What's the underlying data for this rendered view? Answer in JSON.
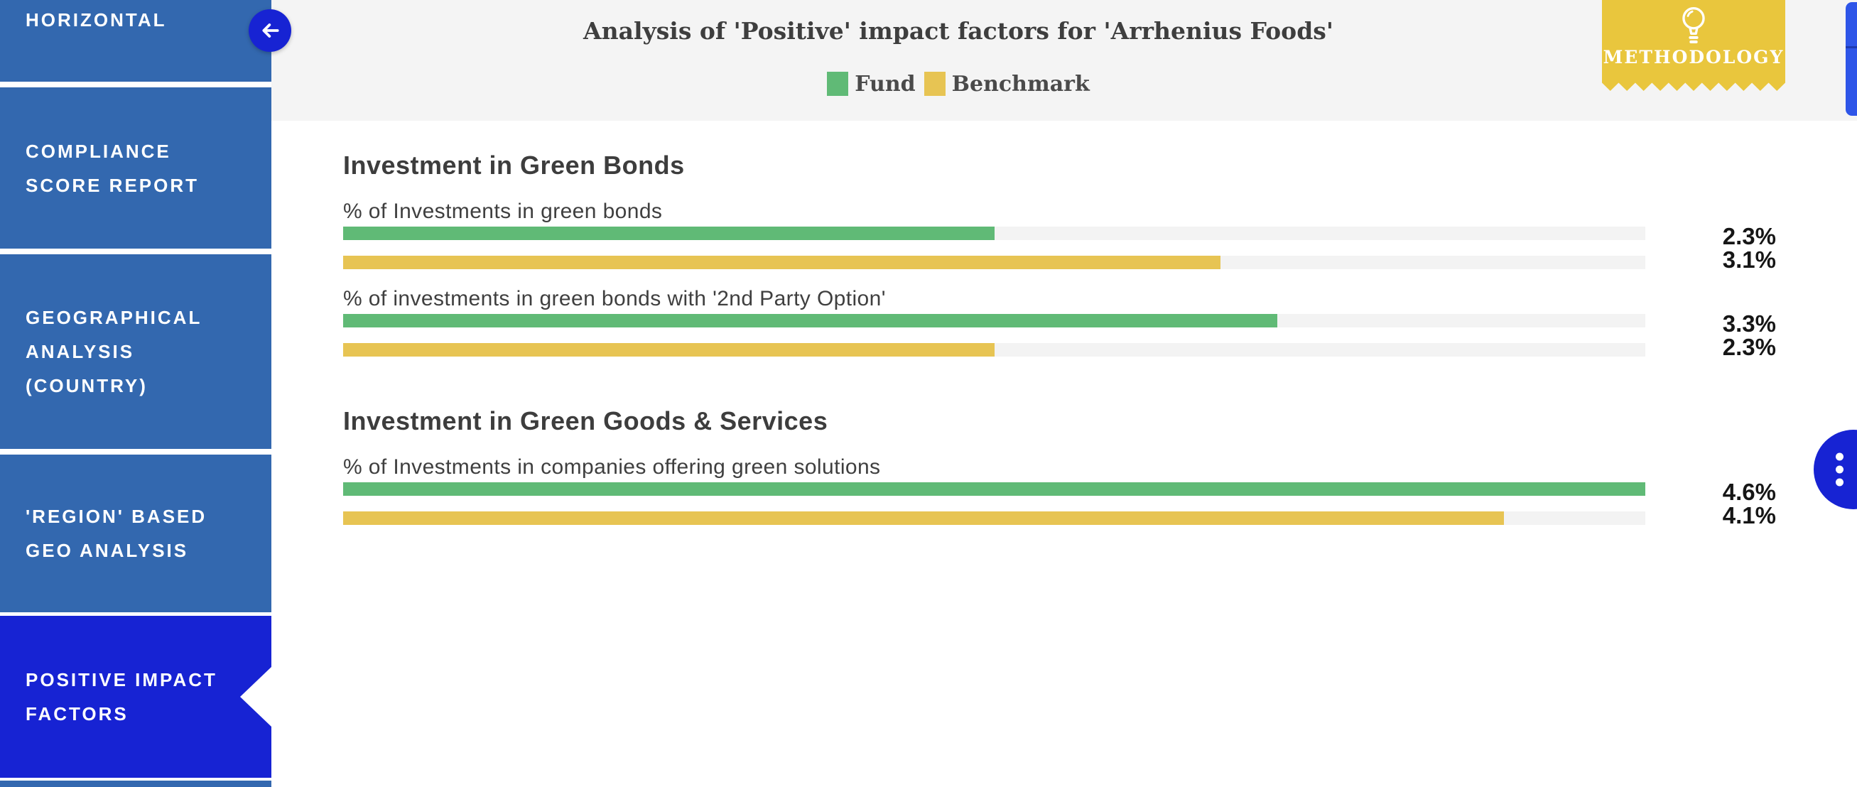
{
  "sidebar": {
    "items": [
      {
        "label": "HORIZONTAL",
        "active": false
      },
      {
        "label": "COMPLIANCE SCORE REPORT",
        "active": false
      },
      {
        "label": "GEOGRAPHICAL ANALYSIS (COUNTRY)",
        "active": false
      },
      {
        "label": "'REGION' BASED GEO ANALYSIS",
        "active": false
      },
      {
        "label": "POSITIVE IMPACT FACTORS",
        "active": true
      },
      {
        "label": "",
        "active": false,
        "partial": true
      }
    ]
  },
  "header": {
    "title": "Analysis of 'Positive' impact factors for 'Arrhenius Foods'",
    "methodology_label": "METHODOLOGY"
  },
  "legend": {
    "fund_label": "Fund",
    "benchmark_label": "Benchmark"
  },
  "colors": {
    "fund_green": "#60ba76",
    "benchmark_yellow": "#e7c453",
    "sidebar_blue": "#3368af",
    "accent_blue": "#1723d3",
    "scrollbar_blue": "#2e55e8",
    "badge_yellow": "#e9c63d",
    "header_gray": "#f4f4f4",
    "track_gray": "#f3f3f3"
  },
  "chart_data": {
    "type": "bar",
    "orientation": "horizontal",
    "title": "Analysis of 'Positive' impact factors for 'Arrhenius Foods'",
    "legend_entries": [
      "Fund",
      "Benchmark"
    ],
    "axis_max_percent": 4.6,
    "value_unit": "%",
    "groups": [
      {
        "section": "Investment in Green Bonds",
        "metrics": [
          {
            "label": "% of Investments in green bonds",
            "fund": 2.3,
            "benchmark": 3.1
          },
          {
            "label": "% of investments in green bonds with '2nd Party Option'",
            "fund": 3.3,
            "benchmark": 2.3
          }
        ]
      },
      {
        "section": "Investment in Green Goods & Services",
        "metrics": [
          {
            "label": "% of Investments in companies offering green solutions",
            "fund": 4.6,
            "benchmark": 4.1
          }
        ]
      }
    ]
  }
}
